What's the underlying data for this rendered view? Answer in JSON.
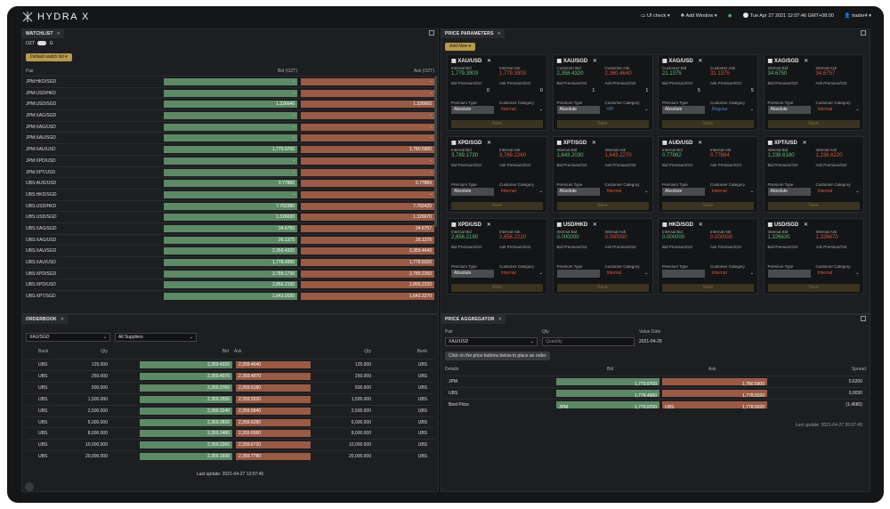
{
  "app": {
    "name": "HYDRA X"
  },
  "topbar": {
    "ui_check": "UI check",
    "add_window": "Add Window",
    "datetime": "Tue Apr 27 2021 12:07:46 GMT+08:00",
    "user": "trader4"
  },
  "watchlist": {
    "tab": "WATCHLIST",
    "toggle_left": "OZT",
    "toggle_right": "G",
    "button": "Default watch list",
    "col_pair": "Pair",
    "col_bid": "Bid (OZT)",
    "col_ask": "Ask (OZT)",
    "rows": [
      {
        "pair": "JPM:HKD/SGD",
        "bid": "-",
        "ask": "-"
      },
      {
        "pair": "JPM:USD/HKD",
        "bid": "-",
        "ask": "-"
      },
      {
        "pair": "JPM:USD/SGD",
        "bid": "1.326640",
        "ask": "1.326660"
      },
      {
        "pair": "JPM:XAG/SGD",
        "bid": "-",
        "ask": "-"
      },
      {
        "pair": "JPM:XAG/USD",
        "bid": "-",
        "ask": "-"
      },
      {
        "pair": "JPM:XAU/SGD",
        "bid": "-",
        "ask": "-"
      },
      {
        "pair": "JPM:XAU/USD",
        "bid": "1,779.9700",
        "ask": "1,780.5900"
      },
      {
        "pair": "JPM:XPD/USD",
        "bid": "-",
        "ask": "-"
      },
      {
        "pair": "JPM:XPT/USD",
        "bid": "-",
        "ask": "-"
      },
      {
        "pair": "UBS:AUD/USD",
        "bid": "0.77882",
        "ask": "0.77884"
      },
      {
        "pair": "UBS:HKD/SGD",
        "bid": "-",
        "ask": "-"
      },
      {
        "pair": "UBS:USD/HKD",
        "bid": "7.762380",
        "ask": "7.762420"
      },
      {
        "pair": "UBS:USD/SGD",
        "bid": "1.326630",
        "ask": "1.326670"
      },
      {
        "pair": "UBS:XAG/SGD",
        "bid": "34.6750",
        "ask": "34.6757"
      },
      {
        "pair": "UBS:XAG/USD",
        "bid": "26.1375",
        "ask": "26.1375"
      },
      {
        "pair": "UBS:XAU/SGD",
        "bid": "2,359.4320",
        "ask": "2,359.4640"
      },
      {
        "pair": "UBS:XAU/USD",
        "bid": "1,778.4990",
        "ask": "1,778.5020"
      },
      {
        "pair": "UBS:XPD/SGD",
        "bid": "3,789.1730",
        "ask": "3,789.2260"
      },
      {
        "pair": "UBS:XPD/USD",
        "bid": "2,856.2190",
        "ask": "2,856.2220"
      },
      {
        "pair": "UBS:XPT/SGD",
        "bid": "1,643.2030",
        "ask": "1,643.2270"
      }
    ]
  },
  "price_params": {
    "tab": "PRICE PARAMETERS",
    "add_new": "Add New",
    "lbl_internal_bid": "Internal Bid",
    "lbl_internal_ask": "Internal Ask",
    "lbl_customer_bid": "Customer Bid",
    "lbl_customer_ask": "Customer Ask",
    "lbl_bid_prem": "Bid Premium/Ozt",
    "lbl_ask_prem": "Ask Premium/Ozt",
    "lbl_prem_type": "Premium Type",
    "lbl_cust_cat": "Customer Category",
    "save": "Save",
    "cards": [
      {
        "pair": "XAU/USD",
        "kind": "internal",
        "bid": "1,779.3903",
        "ask": "1,779.3903",
        "bid_prem": "0",
        "ask_prem": "0",
        "ptype": "Absolute",
        "cat": "Internal",
        "cat_color": "#e0533f"
      },
      {
        "pair": "XAU/SGD",
        "kind": "customer",
        "bid": "2,358.4320",
        "ask": "2,360.4640",
        "bid_prem": "1",
        "ask_prem": "1",
        "ptype": "Absolute",
        "cat": "VIP",
        "cat_color": "#5a7ee0"
      },
      {
        "pair": "XAG/USD",
        "kind": "customer",
        "bid": "21.1375",
        "ask": "31.1375",
        "bid_prem": "5",
        "ask_prem": "5",
        "ptype": "Absolute",
        "cat": "Regular",
        "cat_color": "#5a7ee0"
      },
      {
        "pair": "XAG/SGD",
        "kind": "internal",
        "bid": "34.6750",
        "ask": "34.6757",
        "bid_prem": "",
        "ask_prem": "",
        "ptype": "Absolute",
        "cat": "Internal",
        "cat_color": "#e0533f"
      },
      {
        "pair": "XPD/SGD",
        "kind": "internal",
        "bid": "3,789.1730",
        "ask": "3,789.2260",
        "bid_prem": "",
        "ask_prem": "",
        "ptype": "Absolute",
        "cat": "Internal",
        "cat_color": "#e0533f"
      },
      {
        "pair": "XPT/SGD",
        "kind": "internal",
        "bid": "1,643.2030",
        "ask": "1,643.2270",
        "bid_prem": "",
        "ask_prem": "",
        "ptype": "Absolute",
        "cat": "Internal",
        "cat_color": "#e0533f"
      },
      {
        "pair": "AUD/USD",
        "kind": "internal",
        "bid": "0.77882",
        "ask": "0.77884",
        "bid_prem": "",
        "ask_prem": "",
        "ptype": "Absolute",
        "cat": "Internal",
        "cat_color": "#e0533f"
      },
      {
        "pair": "XPT/USD",
        "kind": "internal",
        "bid": "1,238.6180",
        "ask": "1,238.6220",
        "bid_prem": "",
        "ask_prem": "",
        "ptype": "Absolute",
        "cat": "Internal",
        "cat_color": "#e0533f"
      },
      {
        "pair": "XPD/USD",
        "kind": "internal",
        "bid": "2,856.2190",
        "ask": "2,856.2220",
        "bid_prem": "",
        "ask_prem": "",
        "ptype": "Absolute",
        "cat": "Internal",
        "cat_color": "#e0533f"
      },
      {
        "pair": "USD/HKD",
        "kind": "internal",
        "bid": "0.000000",
        "ask": "0.000000",
        "bid_prem": "",
        "ask_prem": "",
        "ptype": "",
        "cat": "Internal",
        "cat_color": "#e0533f"
      },
      {
        "pair": "HKD/SGD",
        "kind": "internal",
        "bid": "0.000000",
        "ask": "0.000000",
        "bid_prem": "",
        "ask_prem": "",
        "ptype": "",
        "cat": "Internal",
        "cat_color": "#e0533f"
      },
      {
        "pair": "USD/SGD",
        "kind": "internal",
        "bid": "1.326630",
        "ask": "1.326670",
        "bid_prem": "",
        "ask_prem": "",
        "ptype": "",
        "cat": "Internal",
        "cat_color": "#e0533f"
      }
    ]
  },
  "orderbook": {
    "tab": "ORDERBOOK",
    "pair": "XAU/SGD",
    "suppliers": "All Suppliers",
    "col_bank": "Bank",
    "col_qty": "Qty",
    "col_bid": "Bid",
    "col_ask": "Ask",
    "last_update_label": "Last update:",
    "last_update": "2021-04-27 12:07:45",
    "rows": [
      {
        "bank": "UBS",
        "qty": "125.000",
        "bid": "2,359.4320",
        "ask": "2,359.4640"
      },
      {
        "bank": "UBS",
        "qty": "250.000",
        "bid": "2,359.4070",
        "ask": "2,359.4870"
      },
      {
        "bank": "UBS",
        "qty": "500.000",
        "bid": "2,359.3760",
        "ask": "2,359.5180"
      },
      {
        "bank": "UBS",
        "qty": "1,500.000",
        "bid": "2,359.3550",
        "ask": "2,359.5520"
      },
      {
        "bank": "UBS",
        "qty": "2,500.000",
        "bid": "2,359.3240",
        "ask": "2,359.5840"
      },
      {
        "bank": "UBS",
        "qty": "5,000.000",
        "bid": "2,359.2820",
        "ask": "2,359.6280"
      },
      {
        "bank": "UBS",
        "qty": "8,000.000",
        "bid": "2,359.2480",
        "ask": "2,359.6560"
      },
      {
        "bank": "UBS",
        "qty": "10,000.000",
        "bid": "2,359.2260",
        "ask": "2,359.6720"
      },
      {
        "bank": "UBS",
        "qty": "20,000.000",
        "bid": "2,359.1930",
        "ask": "2,359.7780"
      }
    ]
  },
  "aggregator": {
    "tab": "PRICE AGGREGATOR",
    "lbl_pair": "Pair",
    "lbl_qty": "Qty",
    "lbl_value_date": "Value Date",
    "pair": "XAU/USD",
    "qty_placeholder": "Quantity",
    "value_date": "2021-04-29",
    "hint": "Click on the price buttons below to place an order",
    "col_details": "Details",
    "col_bid": "Bid",
    "col_ask": "Ask",
    "col_spread": "Spread",
    "rows": [
      {
        "details": "JPM",
        "bid_label": "",
        "bid": "1,779.9700",
        "ask_label": "",
        "ask": "1,780.5900",
        "spread": "0.6200"
      },
      {
        "details": "UBS",
        "bid_label": "",
        "bid": "1,778.4990",
        "ask_label": "",
        "ask": "1,778.5020",
        "spread": "0.0030"
      },
      {
        "details": "Best Price",
        "bid_label": "JPM",
        "bid": "1,779.9700",
        "ask_label": "UBS",
        "ask": "1,778.5020",
        "spread": "(1.4680)"
      }
    ],
    "last_update": "Last update: 2021-04-27 20:07:45"
  }
}
